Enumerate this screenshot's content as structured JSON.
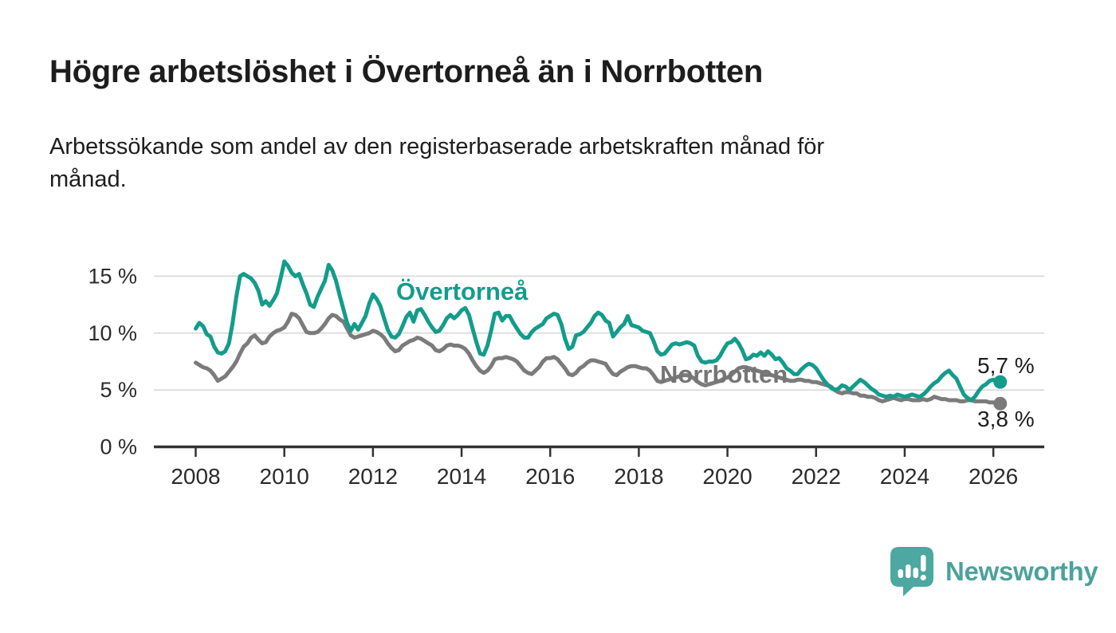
{
  "header": {
    "title": "Högre arbetslöshet i Övertorneå än i Norrbotten",
    "subtitle": "Arbetssökande som andel av den registerbaserade arbetskraften månad för månad."
  },
  "chart_data": {
    "type": "line",
    "title": "Högre arbetslöshet i Övertorneå än i Norrbotten",
    "xlabel": "",
    "ylabel": "Arbetssökande som andel av den registerbaserade arbetskraften",
    "frequency": "monthly",
    "x_start": "2008-01",
    "x_end": "2026-02",
    "ylim": [
      0,
      17
    ],
    "grid": true,
    "legend": "inline labels beside lines",
    "y_ticks": [
      {
        "value": 0,
        "label": "0 %"
      },
      {
        "value": 5,
        "label": "5 %"
      },
      {
        "value": 10,
        "label": "10 %"
      },
      {
        "value": 15,
        "label": "15 %"
      }
    ],
    "x_ticks": [
      2008,
      2010,
      2012,
      2014,
      2016,
      2018,
      2020,
      2022,
      2024,
      2026
    ],
    "series": [
      {
        "name": "Övertorneå",
        "color": "#149c8b",
        "end_label": "5,7 %",
        "end_value": 5.7,
        "values": [
          10.4,
          10.9,
          10.6,
          9.9,
          9.7,
          8.8,
          8.3,
          8.2,
          8.4,
          9.1,
          10.9,
          13.2,
          15.0,
          15.2,
          15.0,
          14.8,
          14.4,
          13.7,
          12.5,
          12.8,
          12.4,
          12.9,
          13.5,
          14.8,
          16.3,
          15.9,
          15.3,
          15.0,
          15.2,
          14.3,
          13.5,
          12.5,
          12.3,
          13.2,
          13.9,
          14.6,
          16.0,
          15.5,
          14.6,
          13.3,
          12.1,
          10.9,
          10.2,
          10.8,
          10.3,
          10.9,
          11.5,
          12.6,
          13.4,
          13.0,
          12.4,
          11.3,
          10.3,
          9.7,
          9.6,
          9.9,
          10.6,
          11.4,
          11.8,
          11.0,
          12.0,
          12.1,
          11.6,
          11.0,
          10.5,
          10.1,
          10.2,
          10.7,
          11.3,
          11.6,
          11.3,
          11.6,
          12.0,
          12.2,
          11.6,
          10.4,
          9.2,
          8.2,
          8.1,
          8.9,
          10.2,
          11.7,
          11.8,
          11.1,
          11.5,
          11.5,
          10.9,
          10.4,
          9.9,
          9.6,
          9.6,
          10.1,
          10.4,
          10.6,
          10.8,
          11.3,
          11.5,
          11.7,
          11.6,
          10.8,
          9.5,
          8.6,
          8.8,
          9.8,
          9.9,
          10.1,
          10.5,
          10.9,
          11.5,
          11.8,
          11.6,
          11.1,
          10.9,
          9.7,
          10.1,
          10.5,
          10.8,
          11.5,
          10.7,
          10.6,
          10.5,
          10.2,
          10.1,
          10.0,
          9.3,
          8.4,
          8.1,
          8.2,
          8.6,
          9.0,
          9.1,
          9.0,
          9.1,
          9.2,
          9.1,
          8.9,
          8.0,
          7.5,
          7.4,
          7.5,
          7.5,
          7.6,
          8.0,
          8.6,
          9.1,
          9.2,
          9.5,
          9.1,
          8.5,
          7.7,
          7.8,
          8.1,
          8.0,
          8.3,
          8.0,
          8.4,
          8.1,
          7.7,
          7.8,
          7.4,
          6.9,
          6.7,
          6.4,
          6.4,
          6.8,
          7.1,
          7.3,
          7.2,
          6.9,
          6.4,
          5.9,
          5.5,
          5.2,
          5.0,
          5.1,
          5.4,
          5.3,
          5.0,
          5.3,
          5.6,
          5.9,
          5.7,
          5.4,
          5.1,
          4.9,
          4.6,
          4.5,
          4.4,
          4.5,
          4.4,
          4.6,
          4.5,
          4.4,
          4.5,
          4.6,
          4.5,
          4.4,
          4.6,
          4.9,
          5.3,
          5.6,
          5.8,
          6.2,
          6.5,
          6.7,
          6.3,
          6.0,
          5.3,
          4.6,
          4.3,
          4.1,
          4.4,
          4.9,
          5.3,
          5.5,
          5.8,
          5.9,
          5.7
        ]
      },
      {
        "name": "Norrbotten",
        "color": "#7b7b7b",
        "end_label": "3,8 %",
        "end_value": 3.8,
        "values": [
          7.4,
          7.2,
          7.0,
          6.9,
          6.7,
          6.3,
          5.8,
          6.0,
          6.2,
          6.6,
          7.0,
          7.5,
          8.2,
          8.8,
          9.1,
          9.6,
          9.8,
          9.4,
          9.1,
          9.2,
          9.7,
          10.0,
          10.2,
          10.3,
          10.5,
          11.0,
          11.7,
          11.6,
          11.3,
          10.7,
          10.1,
          10.0,
          10.0,
          10.1,
          10.4,
          10.8,
          11.3,
          11.6,
          11.5,
          11.2,
          11.0,
          10.4,
          9.8,
          9.6,
          9.7,
          9.8,
          9.9,
          10.0,
          10.2,
          10.1,
          9.9,
          9.6,
          9.1,
          8.7,
          8.4,
          8.5,
          8.9,
          9.1,
          9.3,
          9.4,
          9.6,
          9.5,
          9.3,
          9.1,
          8.9,
          8.5,
          8.4,
          8.6,
          8.9,
          9.0,
          8.9,
          8.9,
          8.8,
          8.6,
          8.2,
          7.6,
          7.1,
          6.7,
          6.5,
          6.7,
          7.1,
          7.7,
          7.8,
          7.8,
          7.9,
          7.8,
          7.7,
          7.5,
          7.1,
          6.7,
          6.5,
          6.4,
          6.7,
          7.0,
          7.5,
          7.8,
          7.8,
          7.9,
          7.7,
          7.3,
          6.9,
          6.4,
          6.3,
          6.5,
          6.9,
          7.1,
          7.4,
          7.6,
          7.6,
          7.5,
          7.4,
          7.3,
          6.8,
          6.4,
          6.3,
          6.6,
          6.8,
          7.0,
          7.1,
          7.1,
          7.0,
          6.9,
          6.9,
          6.7,
          6.3,
          5.8,
          5.7,
          5.8,
          5.9,
          6.0,
          6.1,
          6.2,
          6.3,
          6.3,
          6.2,
          6.0,
          5.7,
          5.5,
          5.4,
          5.5,
          5.6,
          5.7,
          5.8,
          6.0,
          6.1,
          6.3,
          6.6,
          6.9,
          7.0,
          7.0,
          6.9,
          6.8,
          6.7,
          6.6,
          6.5,
          6.4,
          6.3,
          6.2,
          6.1,
          6.0,
          5.9,
          5.8,
          5.8,
          5.9,
          5.9,
          5.8,
          5.8,
          5.7,
          5.7,
          5.6,
          5.5,
          5.4,
          5.3,
          5.0,
          4.8,
          4.7,
          4.8,
          4.8,
          4.7,
          4.7,
          4.5,
          4.5,
          4.4,
          4.4,
          4.3,
          4.1,
          4.0,
          4.1,
          4.2,
          4.3,
          4.2,
          4.1,
          4.2,
          4.2,
          4.1,
          4.1,
          4.1,
          4.2,
          4.1,
          4.2,
          4.4,
          4.3,
          4.2,
          4.2,
          4.1,
          4.1,
          4.1,
          4.0,
          4.0,
          4.1,
          4.1,
          4.0,
          4.0,
          4.0,
          4.0,
          3.9,
          3.9,
          3.8
        ]
      }
    ],
    "colors": {
      "axis": "#333333",
      "gridline": "#d9d9d9",
      "tick_label": "#2b2b2b"
    }
  },
  "footer": {
    "brand": "Newsworthy",
    "brand_color": "#4ca29a"
  }
}
